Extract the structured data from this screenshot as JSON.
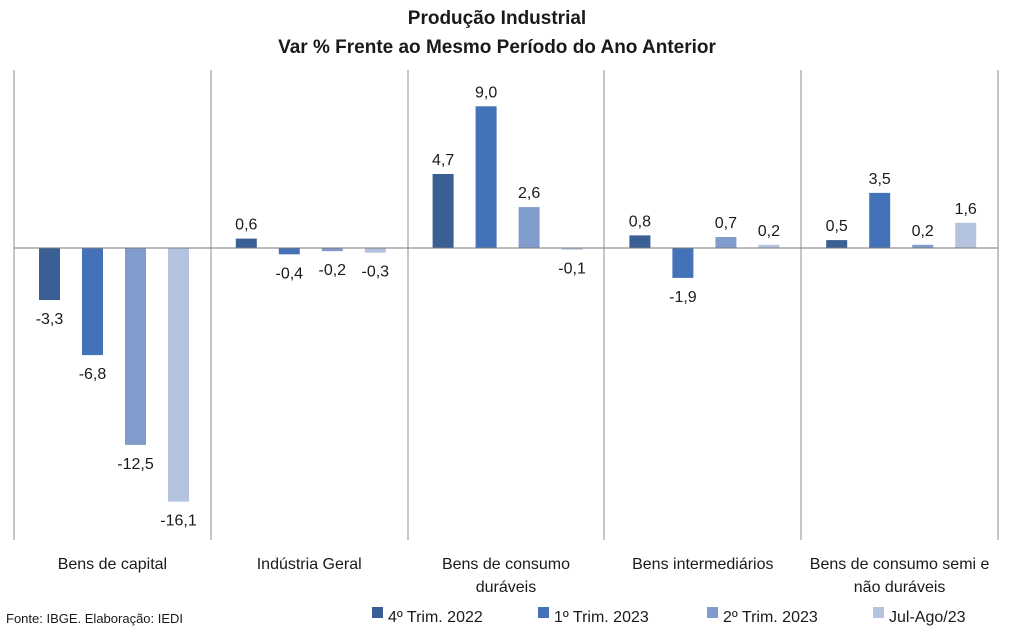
{
  "chart_data": {
    "type": "bar",
    "title": [
      "Produção Industrial",
      "Var %  Frente ao Mesmo Período do Ano Anterior"
    ],
    "categories": [
      [
        "Bens de capital"
      ],
      [
        "Indústria Geral"
      ],
      [
        "Bens de consumo",
        "duráveis"
      ],
      [
        "Bens intermediários"
      ],
      [
        "Bens de consumo semi e",
        "não duráveis"
      ]
    ],
    "series": [
      {
        "name": "4º Trim. 2022",
        "color": "#3a5f94",
        "values": [
          -3.3,
          0.6,
          4.7,
          0.8,
          0.5
        ],
        "labels": [
          "-3,3",
          "0,6",
          "4,7",
          "0,8",
          "0,5"
        ]
      },
      {
        "name": "1º Trim. 2023",
        "color": "#4472b8",
        "values": [
          -6.8,
          -0.4,
          9.0,
          -1.9,
          3.5
        ],
        "labels": [
          "-6,8",
          "-0,4",
          "9,0",
          "-1,9",
          "3,5"
        ]
      },
      {
        "name": "2º Trim. 2023",
        "color": "#7f9ccc",
        "values": [
          -12.5,
          -0.2,
          2.6,
          0.7,
          0.2
        ],
        "labels": [
          "-12,5",
          "-0,2",
          "2,6",
          "0,7",
          "0,2"
        ]
      },
      {
        "name": "Jul-Ago/23",
        "color": "#b4c3df",
        "values": [
          -16.1,
          -0.3,
          -0.1,
          0.2,
          1.6
        ],
        "labels": [
          "-16,1",
          "-0,3",
          "-0,1",
          "0,2",
          "1,6"
        ]
      }
    ],
    "ylim": [
      -18.5,
      11.5
    ],
    "grid": false,
    "legend_position": "bottom",
    "source": "Fonte: IBGE. Elaboração: IEDI"
  }
}
